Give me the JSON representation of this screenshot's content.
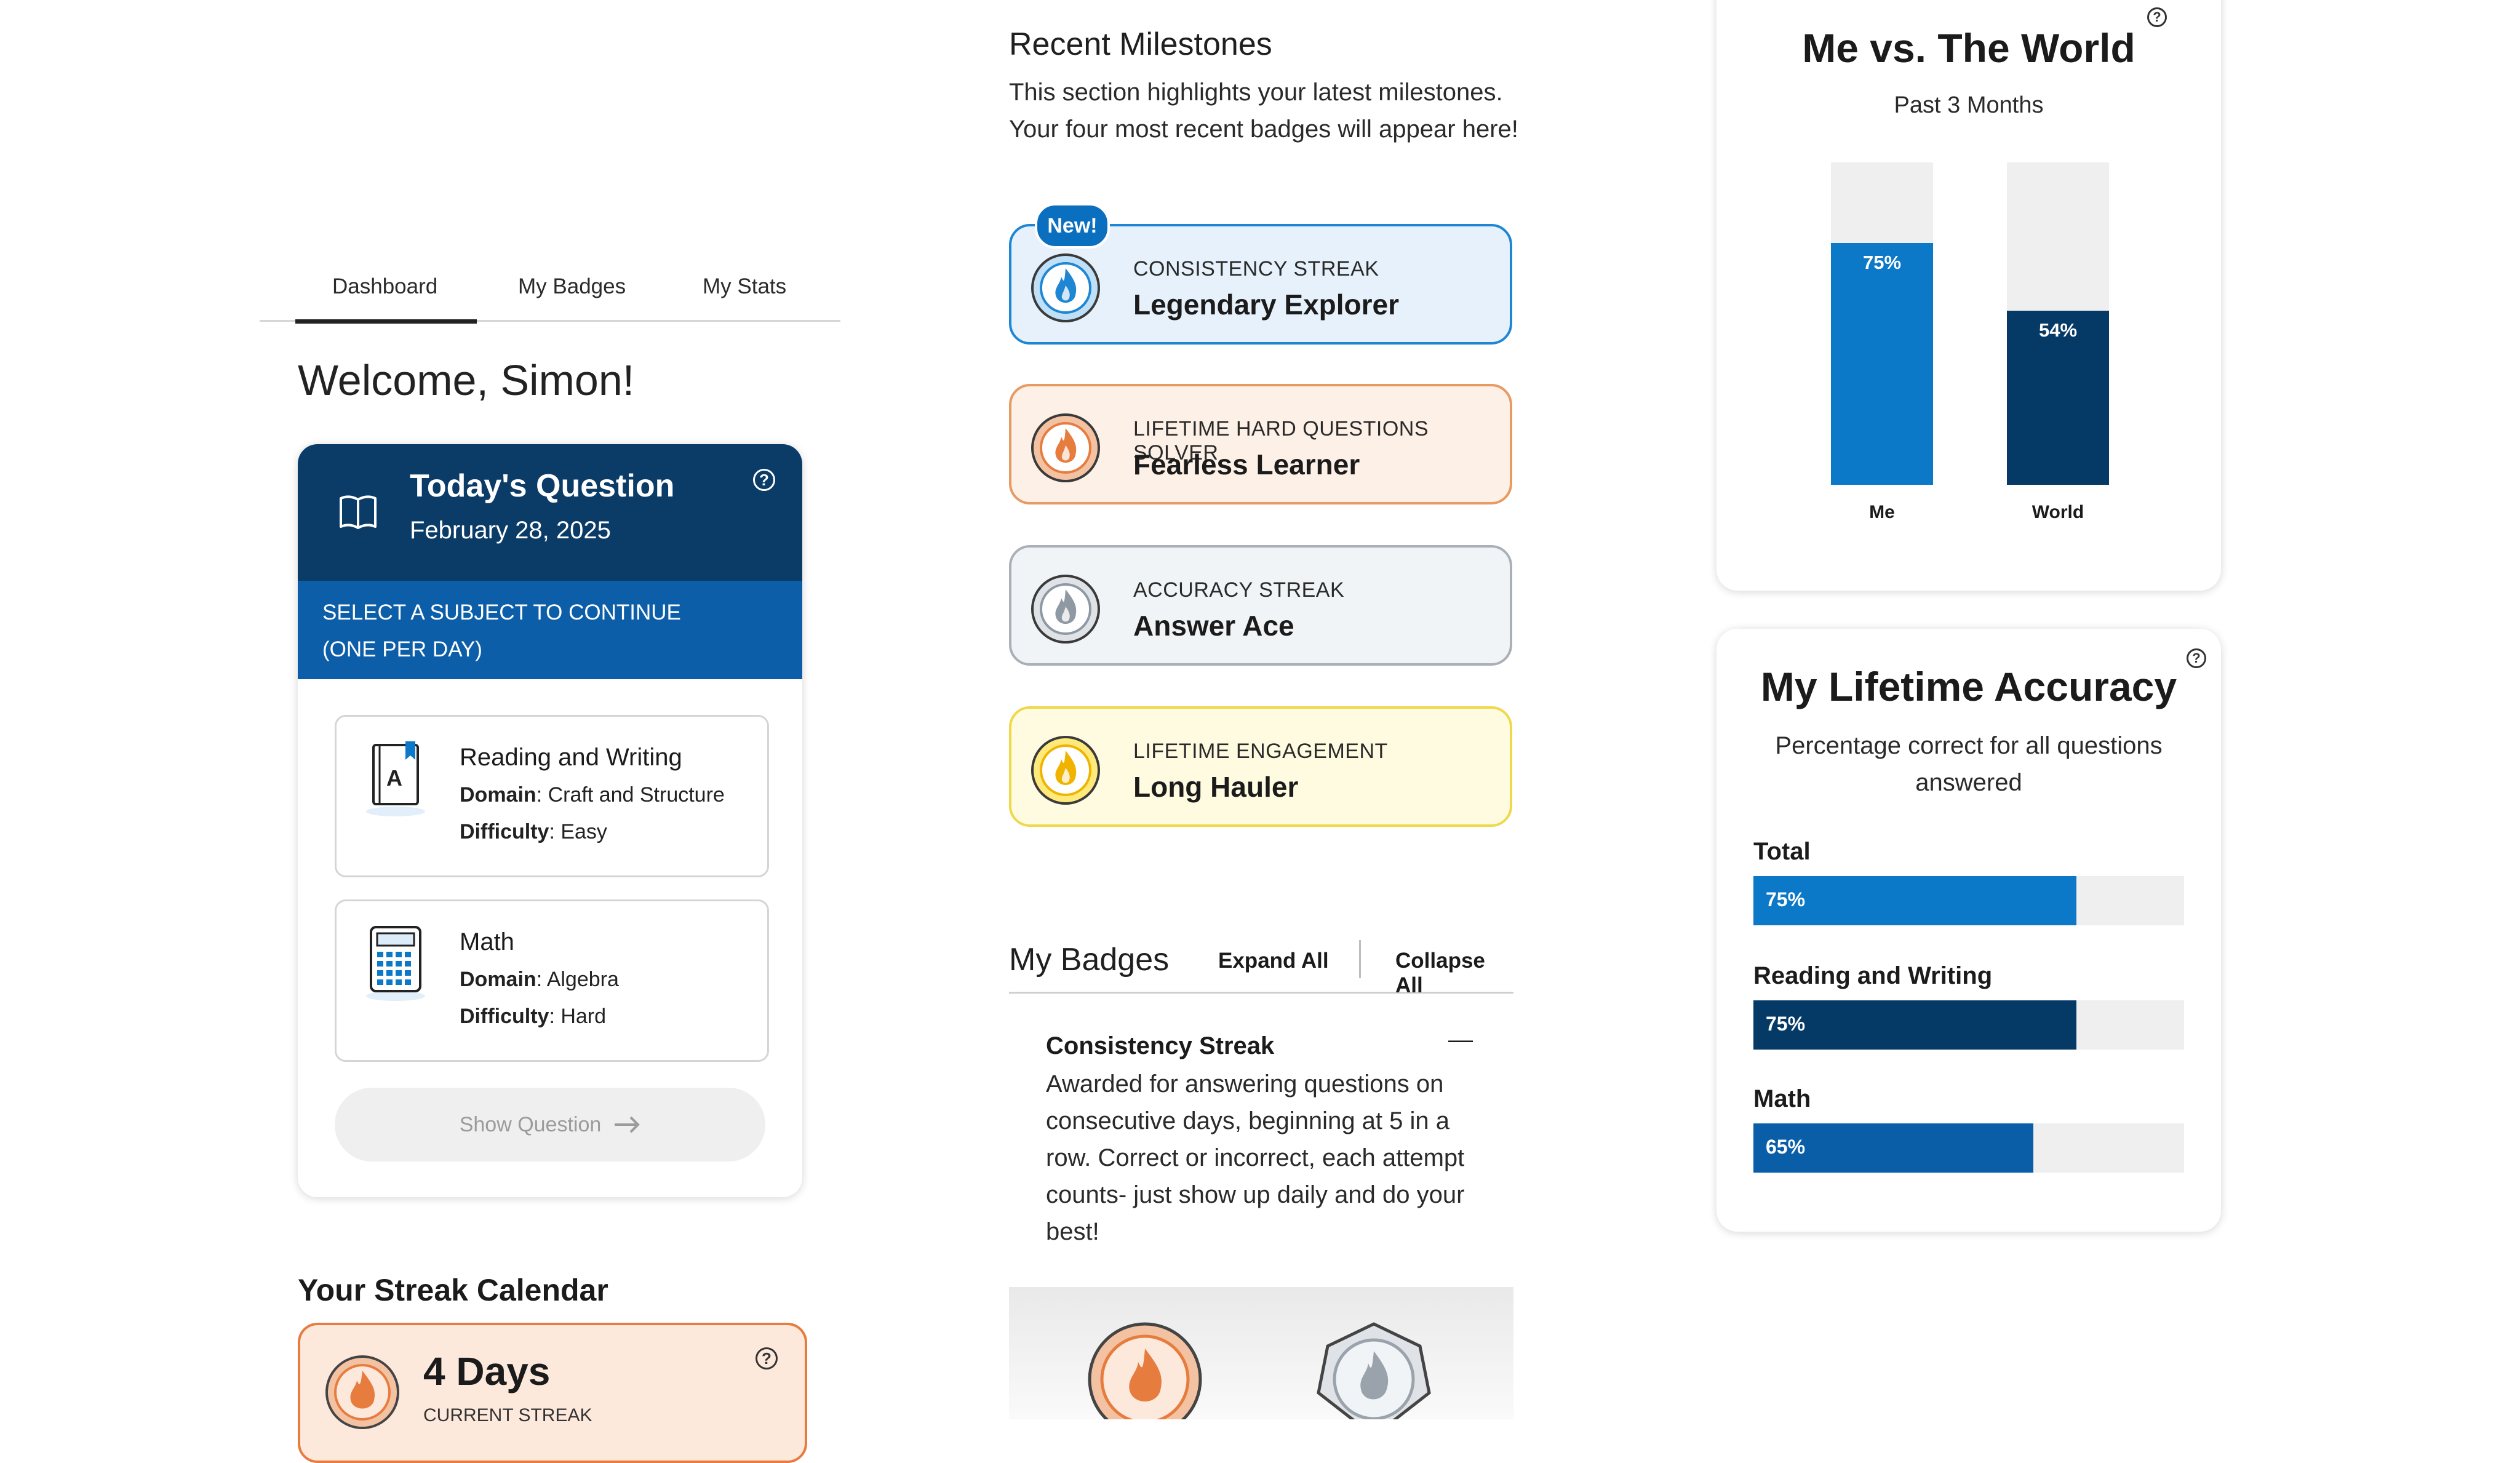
{
  "tabs": [
    "Dashboard",
    "My Badges",
    "My Stats"
  ],
  "welcome": "Welcome, Simon!",
  "today_question": {
    "title": "Today's Question",
    "date": "February 28, 2025",
    "instruction_line1": "SELECT A SUBJECT TO CONTINUE",
    "instruction_line2": "(ONE PER DAY)",
    "subjects": [
      {
        "title": "Reading and Writing",
        "domain_label": "Domain",
        "domain": ": Craft and Structure",
        "difficulty_label": "Difficulty",
        "difficulty": ": Easy",
        "icon_letter": "A"
      },
      {
        "title": "Math",
        "domain_label": "Domain",
        "domain": ": Algebra",
        "difficulty_label": "Difficulty",
        "difficulty": ": Hard"
      }
    ],
    "show_button": "Show Question"
  },
  "streak": {
    "section_title": "Your Streak Calendar",
    "days": "4 Days",
    "caption": "CURRENT STREAK"
  },
  "milestones": {
    "title": "Recent Milestones",
    "description": "This section highlights your latest milestones. Your four most recent badges will appear here!",
    "new_label": "New!",
    "badges": [
      {
        "kind": "CONSISTENCY STREAK",
        "name": "Legendary Explorer",
        "bg": "#e6f1fb",
        "border": "#1f86d4"
      },
      {
        "kind": "LIFETIME HARD QUESTIONS SOLVER",
        "name": "Fearless Learner",
        "bg": "#fdf0e6",
        "border": "#e89a63"
      },
      {
        "kind": "ACCURACY STREAK",
        "name": "Answer Ace",
        "bg": "#f1f4f7",
        "border": "#a9b0b8"
      },
      {
        "kind": "LIFETIME ENGAGEMENT",
        "name": "Long Hauler",
        "bg": "#fffbe0",
        "border": "#efd84a"
      }
    ]
  },
  "my_badges": {
    "title": "My Badges",
    "expand_all": "Expand All",
    "collapse_all": "Collapse All",
    "section_title": "Consistency Streak",
    "collapse_glyph": "—",
    "section_text": "Awarded for answering questions on consecutive days, beginning at 5 in a row. Correct or incorrect, each attempt counts- just show up daily and do your best!"
  },
  "me_vs_world": {
    "title": "Me vs. The World",
    "subtitle": "Past 3 Months",
    "chart_data": {
      "type": "bar",
      "categories": [
        "Me",
        "World"
      ],
      "values": [
        75,
        54
      ],
      "value_labels": [
        "75%",
        "54%"
      ],
      "ylim": [
        0,
        100
      ],
      "colors": [
        "#0b78c8",
        "#063a66"
      ],
      "track_color": "#efefef"
    }
  },
  "lifetime_accuracy": {
    "title": "My Lifetime Accuracy",
    "subtitle": "Percentage correct for all questions answered",
    "items": [
      {
        "name": "Total",
        "value": 75,
        "label": "75%",
        "color": "#0b78c8"
      },
      {
        "name": "Reading and Writing",
        "value": 75,
        "label": "75%",
        "color": "#063a66"
      },
      {
        "name": "Math",
        "value": 65,
        "label": "65%",
        "color": "#0a5ea8"
      }
    ]
  },
  "colors": {
    "navy": "#0b3c68",
    "blue": "#0d5ea8",
    "accent": "#0b6fbf",
    "streak_orange": "#e77c3f"
  },
  "icons": [
    "book-open-icon",
    "help-icon",
    "reading-book-icon",
    "calculator-icon",
    "arrow-right-icon",
    "flame-badge-icon",
    "minus-icon"
  ]
}
